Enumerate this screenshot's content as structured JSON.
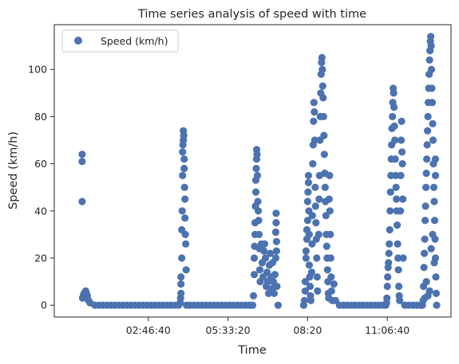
{
  "chart_data": {
    "type": "scatter",
    "title": "Time series analysis of speed with time",
    "xlabel": "Time",
    "ylabel": "Speed (km/h)",
    "x_unit": "seconds",
    "xlim": [
      -1800,
      48000
    ],
    "ylim": [
      -5,
      119
    ],
    "x_ticks": [
      {
        "value": 10000,
        "label": "02:46:40"
      },
      {
        "value": 20000,
        "label": "05:33:20"
      },
      {
        "value": 30000,
        "label": "08:20"
      },
      {
        "value": 40000,
        "label": "11:06:40"
      }
    ],
    "y_ticks": [
      {
        "value": 0,
        "label": "0"
      },
      {
        "value": 20,
        "label": "20"
      },
      {
        "value": 40,
        "label": "40"
      },
      {
        "value": 60,
        "label": "60"
      },
      {
        "value": 80,
        "label": "80"
      },
      {
        "value": 100,
        "label": "100"
      }
    ],
    "legend": {
      "position": "top-left",
      "entries": [
        "Speed (km/h)"
      ]
    },
    "series": [
      {
        "name": "Speed (km/h)",
        "color": "#4c72b0",
        "points": [
          [
            1700,
            64
          ],
          [
            1700,
            61
          ],
          [
            1700,
            44
          ],
          [
            1750,
            3
          ],
          [
            1850,
            4
          ],
          [
            1950,
            5
          ],
          [
            2050,
            4
          ],
          [
            2150,
            6
          ],
          [
            2250,
            5
          ],
          [
            2350,
            4
          ],
          [
            2500,
            2
          ],
          [
            2700,
            1
          ],
          [
            3300,
            0
          ],
          [
            3800,
            0
          ],
          [
            4300,
            0
          ],
          [
            4800,
            0
          ],
          [
            5300,
            0
          ],
          [
            5800,
            0
          ],
          [
            6300,
            0
          ],
          [
            6800,
            0
          ],
          [
            7300,
            0
          ],
          [
            7800,
            0
          ],
          [
            8300,
            0
          ],
          [
            8800,
            0
          ],
          [
            9300,
            0
          ],
          [
            9800,
            0
          ],
          [
            10300,
            0
          ],
          [
            10800,
            0
          ],
          [
            11300,
            0
          ],
          [
            11800,
            0
          ],
          [
            12300,
            0
          ],
          [
            12800,
            0
          ],
          [
            13300,
            0
          ],
          [
            13800,
            0
          ],
          [
            14000,
            1
          ],
          [
            14050,
            3
          ],
          [
            14100,
            12
          ],
          [
            14100,
            9
          ],
          [
            14100,
            5
          ],
          [
            14200,
            20
          ],
          [
            14200,
            32
          ],
          [
            14250,
            40
          ],
          [
            14300,
            55
          ],
          [
            14300,
            65
          ],
          [
            14350,
            68
          ],
          [
            14400,
            70
          ],
          [
            14400,
            74
          ],
          [
            14450,
            72
          ],
          [
            14500,
            62
          ],
          [
            14500,
            58
          ],
          [
            14550,
            50
          ],
          [
            14600,
            45
          ],
          [
            14600,
            37
          ],
          [
            14650,
            30
          ],
          [
            14700,
            26
          ],
          [
            14750,
            15
          ],
          [
            14800,
            0
          ],
          [
            15200,
            0
          ],
          [
            15700,
            0
          ],
          [
            16200,
            0
          ],
          [
            16700,
            0
          ],
          [
            17200,
            0
          ],
          [
            17700,
            0
          ],
          [
            18200,
            0
          ],
          [
            18700,
            0
          ],
          [
            19200,
            0
          ],
          [
            19700,
            0
          ],
          [
            20200,
            0
          ],
          [
            20700,
            0
          ],
          [
            21200,
            0
          ],
          [
            21700,
            0
          ],
          [
            22200,
            0
          ],
          [
            22700,
            0
          ],
          [
            23100,
            0
          ],
          [
            23200,
            4
          ],
          [
            23300,
            13
          ],
          [
            23300,
            20
          ],
          [
            23350,
            25
          ],
          [
            23400,
            30
          ],
          [
            23400,
            35
          ],
          [
            23450,
            42
          ],
          [
            23500,
            48
          ],
          [
            23500,
            53
          ],
          [
            23550,
            58
          ],
          [
            23600,
            62
          ],
          [
            23600,
            66
          ],
          [
            23650,
            64
          ],
          [
            23700,
            55
          ],
          [
            23750,
            44
          ],
          [
            23800,
            40
          ],
          [
            23850,
            36
          ],
          [
            23900,
            30
          ],
          [
            23950,
            24
          ],
          [
            24000,
            15
          ],
          [
            24050,
            10
          ],
          [
            24200,
            26
          ],
          [
            24300,
            18
          ],
          [
            24400,
            12
          ],
          [
            24500,
            23
          ],
          [
            24600,
            26
          ],
          [
            24700,
            20
          ],
          [
            24800,
            8
          ],
          [
            24900,
            14
          ],
          [
            25000,
            10
          ],
          [
            25100,
            5
          ],
          [
            25200,
            17
          ],
          [
            25300,
            22
          ],
          [
            25400,
            12
          ],
          [
            25500,
            7
          ],
          [
            25600,
            18
          ],
          [
            25700,
            10
          ],
          [
            25800,
            5
          ],
          [
            25900,
            13
          ],
          [
            26000,
            20
          ],
          [
            26000,
            31
          ],
          [
            26050,
            35
          ],
          [
            26050,
            39
          ],
          [
            26100,
            27
          ],
          [
            26100,
            23
          ],
          [
            26150,
            8
          ],
          [
            26300,
            0
          ],
          [
            29500,
            0
          ],
          [
            29600,
            2
          ],
          [
            29700,
            6
          ],
          [
            29700,
            10
          ],
          [
            29800,
            20
          ],
          [
            29800,
            23
          ],
          [
            29900,
            28
          ],
          [
            29900,
            32
          ],
          [
            30000,
            36
          ],
          [
            30000,
            44
          ],
          [
            30050,
            48
          ],
          [
            30100,
            52
          ],
          [
            30100,
            55
          ],
          [
            30150,
            40
          ],
          [
            30200,
            30
          ],
          [
            30200,
            17
          ],
          [
            30250,
            12
          ],
          [
            30300,
            8
          ],
          [
            30350,
            4
          ],
          [
            30400,
            2
          ],
          [
            30500,
            14
          ],
          [
            30550,
            26
          ],
          [
            30600,
            38
          ],
          [
            30650,
            60
          ],
          [
            30700,
            68
          ],
          [
            30750,
            78
          ],
          [
            30800,
            86
          ],
          [
            30850,
            82
          ],
          [
            30900,
            70
          ],
          [
            30950,
            50
          ],
          [
            31000,
            42
          ],
          [
            31050,
            35
          ],
          [
            31100,
            28
          ],
          [
            31150,
            20
          ],
          [
            31200,
            12
          ],
          [
            31250,
            6
          ],
          [
            31400,
            30
          ],
          [
            31450,
            45
          ],
          [
            31500,
            55
          ],
          [
            31550,
            70
          ],
          [
            31600,
            80
          ],
          [
            31650,
            90
          ],
          [
            31700,
            98
          ],
          [
            31750,
            103
          ],
          [
            31800,
            105
          ],
          [
            31850,
            100
          ],
          [
            31900,
            93
          ],
          [
            31950,
            88
          ],
          [
            32000,
            80
          ],
          [
            32050,
            72
          ],
          [
            32100,
            64
          ],
          [
            32150,
            56
          ],
          [
            32200,
            50
          ],
          [
            32250,
            44
          ],
          [
            32300,
            38
          ],
          [
            32350,
            30
          ],
          [
            32400,
            25
          ],
          [
            32450,
            20
          ],
          [
            32500,
            15
          ],
          [
            32550,
            10
          ],
          [
            32600,
            5
          ],
          [
            32650,
            3
          ],
          [
            32700,
            45
          ],
          [
            32750,
            55
          ],
          [
            32800,
            40
          ],
          [
            32850,
            30
          ],
          [
            32900,
            20
          ],
          [
            32950,
            12
          ],
          [
            33000,
            6
          ],
          [
            33100,
            2
          ],
          [
            33300,
            9
          ],
          [
            33500,
            2
          ],
          [
            34000,
            0
          ],
          [
            34500,
            0
          ],
          [
            35000,
            0
          ],
          [
            35500,
            0
          ],
          [
            36000,
            0
          ],
          [
            36500,
            0
          ],
          [
            37000,
            0
          ],
          [
            37500,
            0
          ],
          [
            38000,
            0
          ],
          [
            38500,
            0
          ],
          [
            39000,
            0
          ],
          [
            39500,
            0
          ],
          [
            39800,
            0
          ],
          [
            39900,
            1
          ],
          [
            39950,
            3
          ],
          [
            40000,
            8
          ],
          [
            40050,
            12
          ],
          [
            40100,
            16
          ],
          [
            40150,
            18
          ],
          [
            40200,
            22
          ],
          [
            40250,
            26
          ],
          [
            40300,
            32
          ],
          [
            40350,
            40
          ],
          [
            40400,
            48
          ],
          [
            40450,
            55
          ],
          [
            40500,
            62
          ],
          [
            40550,
            68
          ],
          [
            40600,
            75
          ],
          [
            40650,
            80
          ],
          [
            40700,
            86
          ],
          [
            40750,
            92
          ],
          [
            40800,
            90
          ],
          [
            40850,
            84
          ],
          [
            40900,
            76
          ],
          [
            40950,
            70
          ],
          [
            41000,
            62
          ],
          [
            41050,
            55
          ],
          [
            41100,
            50
          ],
          [
            41150,
            45
          ],
          [
            41200,
            40
          ],
          [
            41250,
            34
          ],
          [
            41300,
            26
          ],
          [
            41350,
            20
          ],
          [
            41400,
            15
          ],
          [
            41450,
            8
          ],
          [
            41500,
            4
          ],
          [
            41550,
            2
          ],
          [
            41650,
            40
          ],
          [
            41700,
            55
          ],
          [
            41750,
            70
          ],
          [
            41800,
            78
          ],
          [
            41850,
            65
          ],
          [
            41900,
            60
          ],
          [
            41950,
            45
          ],
          [
            42000,
            20
          ],
          [
            42200,
            0
          ],
          [
            42700,
            0
          ],
          [
            43200,
            0
          ],
          [
            43700,
            0
          ],
          [
            44200,
            0
          ],
          [
            44400,
            0
          ],
          [
            44500,
            2
          ],
          [
            44550,
            8
          ],
          [
            44600,
            16
          ],
          [
            44650,
            22
          ],
          [
            44700,
            28
          ],
          [
            44750,
            36
          ],
          [
            44800,
            42
          ],
          [
            44850,
            50
          ],
          [
            44900,
            56
          ],
          [
            44950,
            62
          ],
          [
            45000,
            68
          ],
          [
            45050,
            74
          ],
          [
            45100,
            80
          ],
          [
            45150,
            86
          ],
          [
            45200,
            92
          ],
          [
            45250,
            98
          ],
          [
            45300,
            104
          ],
          [
            45350,
            108
          ],
          [
            45400,
            112
          ],
          [
            45450,
            114
          ],
          [
            45500,
            110
          ],
          [
            45550,
            100
          ],
          [
            45600,
            92
          ],
          [
            45650,
            86
          ],
          [
            45700,
            77
          ],
          [
            45750,
            70
          ],
          [
            45800,
            60
          ],
          [
            45850,
            50
          ],
          [
            45900,
            44
          ],
          [
            45950,
            36
          ],
          [
            46000,
            28
          ],
          [
            46050,
            20
          ],
          [
            46100,
            12
          ],
          [
            46150,
            5
          ],
          [
            46200,
            0
          ],
          [
            44700,
            3
          ],
          [
            44900,
            10
          ],
          [
            45100,
            4
          ],
          [
            45300,
            6
          ],
          [
            45500,
            24
          ],
          [
            45700,
            30
          ],
          [
            45900,
            18
          ],
          [
            46050,
            55
          ],
          [
            46050,
            62
          ]
        ]
      }
    ]
  }
}
